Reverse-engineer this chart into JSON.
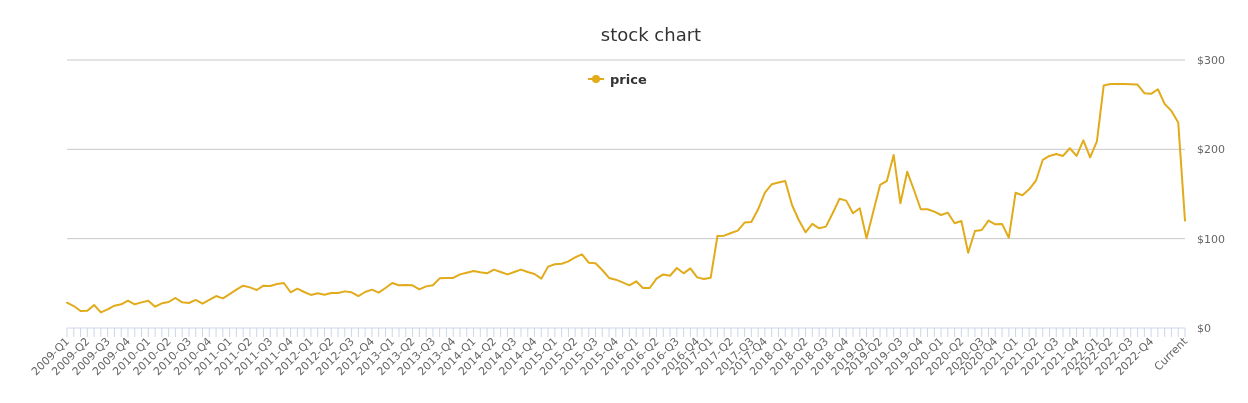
{
  "chart_data": {
    "type": "line",
    "title": "stock chart",
    "categories": [
      "2009-Q1",
      null,
      null,
      "2009-Q2",
      null,
      null,
      "2009-Q3",
      null,
      null,
      "2009-Q4",
      null,
      null,
      "2010-Q1",
      null,
      null,
      "2010-Q2",
      null,
      null,
      "2010-Q3",
      null,
      null,
      "2010-Q4",
      null,
      null,
      "2011-Q1",
      null,
      null,
      "2011-Q2",
      null,
      null,
      "2011-Q3",
      null,
      null,
      "2011-Q4",
      null,
      null,
      "2012-Q1",
      null,
      null,
      "2012-Q2",
      null,
      null,
      "2012-Q3",
      null,
      null,
      "2012-Q4",
      null,
      null,
      "2013-Q1",
      null,
      null,
      "2013-Q2",
      null,
      null,
      "2013-Q3",
      null,
      null,
      "2013-Q4",
      null,
      null,
      "2014-Q1",
      null,
      null,
      "2014-Q2",
      null,
      null,
      "2014-Q3",
      null,
      null,
      "2014-Q4",
      null,
      null,
      "2015-Q1",
      null,
      null,
      "2015-Q2",
      null,
      null,
      "2015-Q3",
      null,
      null,
      "2015-Q4",
      null,
      null,
      "2016-Q1",
      null,
      null,
      "2016-Q2",
      null,
      null,
      "2016-Q3",
      null,
      null,
      "2016-Q4",
      null,
      "2017-Q1",
      null,
      null,
      "2017-Q2",
      null,
      null,
      "2017-Q3",
      null,
      "2017-Q4",
      null,
      null,
      "2018-Q1",
      null,
      null,
      "2018-Q2",
      null,
      null,
      "2018-Q3",
      null,
      null,
      "2018-Q4",
      null,
      null,
      "2019-Q1",
      null,
      "2019-Q2",
      null,
      null,
      "2019-Q3",
      null,
      null,
      "2019-Q4",
      null,
      null,
      "2020-Q1",
      null,
      null,
      "2020-Q2",
      null,
      null,
      "2020-Q3",
      null,
      "2020-Q4",
      null,
      null,
      "2021-Q1",
      null,
      null,
      "2021-Q2",
      null,
      null,
      "2021-Q3",
      null,
      null,
      "2021-Q4",
      null,
      null,
      "2022-Q1",
      null,
      "2022-Q2",
      null,
      null,
      "2022-Q3",
      null,
      null,
      "2022-Q4",
      null,
      null,
      null,
      null,
      "Current"
    ],
    "series": [
      {
        "name": "price",
        "color": "#e2ab1c",
        "values": [
          28.3,
          24.6,
          19,
          19.4,
          25.7,
          17.5,
          20.9,
          25,
          26.5,
          30.6,
          26.5,
          28.7,
          30.6,
          23.9,
          27.6,
          29.1,
          33.6,
          28.7,
          28,
          31.4,
          27.2,
          31.4,
          35.8,
          33.2,
          38,
          42.9,
          47.4,
          45.5,
          42.5,
          47.4,
          47,
          49.3,
          50.4,
          40,
          44,
          40.3,
          37,
          38.8,
          37.3,
          39.2,
          39.2,
          41,
          40,
          35.8,
          40.3,
          42.9,
          39.6,
          44.8,
          50.4,
          47.8,
          48.2,
          47.8,
          43.3,
          46.6,
          47.8,
          55.6,
          56,
          56,
          60,
          61.9,
          63.8,
          62.3,
          61.2,
          65.3,
          62.7,
          60,
          62.7,
          65.3,
          62.7,
          60.4,
          55.2,
          68.7,
          71.3,
          72,
          74.6,
          79.1,
          82.5,
          73.1,
          72.4,
          64.9,
          56,
          54.1,
          51.1,
          47.8,
          52.3,
          44.8,
          44.8,
          55.2,
          60,
          58.5,
          67.2,
          61.2,
          66.8,
          56.7,
          54.9,
          56.3,
          103,
          103.4,
          106.4,
          109,
          118,
          118.6,
          132.9,
          151.5,
          160.9,
          162.8,
          164.6,
          137.7,
          120.9,
          107.1,
          116.5,
          111.6,
          113.5,
          128.4,
          144.6,
          142.6,
          128.4,
          134,
          100.4,
          130.3,
          160.1,
          164.6,
          193.7,
          139.6,
          175,
          154.5,
          132.9,
          132.9,
          130.3,
          126.5,
          129.1,
          117.2,
          119.8,
          84.3,
          108.6,
          109.7,
          120.2,
          116.1,
          116.5,
          101.1,
          151.5,
          148.5,
          155.2,
          164.9,
          188.1,
          192.6,
          194.8,
          192.6,
          201.2,
          192.6,
          210.1,
          191,
          209,
          271.4,
          273.2,
          273.2,
          273.2,
          272.8,
          272.5,
          262.8,
          262.1,
          267.3,
          250.8,
          243,
          229.9,
          120.2
        ]
      }
    ],
    "ylim": [
      0,
      300
    ],
    "yticks": [
      {
        "value": 0,
        "label": "$0"
      },
      {
        "value": 100,
        "label": "$100"
      },
      {
        "value": 200,
        "label": "$200"
      },
      {
        "value": 300,
        "label": "$300"
      }
    ],
    "grid": "y",
    "legend": "top"
  }
}
